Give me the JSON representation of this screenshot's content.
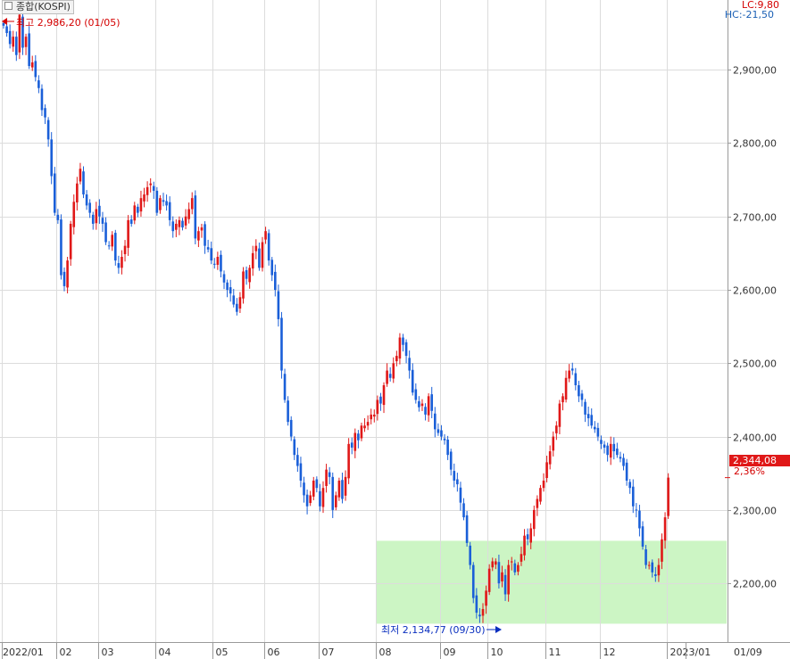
{
  "header": {
    "title": "종합(KOSPI)",
    "lc_label": "LC:9,80",
    "hc_label": "HC:-21,50"
  },
  "annotations": {
    "high": "최고 2,986,20 (01/05)",
    "low": "최저 2,134,77 (09/30)",
    "current_price": "2,344,08",
    "current_change": "2,36%"
  },
  "colors": {
    "up": "#e01818",
    "down": "#1a5fd8",
    "grid": "#dcdcdc",
    "zone": "#ccf5c4"
  },
  "chart_data": {
    "type": "candlestick",
    "title": "종합(KOSPI)",
    "ylim": [
      2120,
      2995
    ],
    "yticks": [
      2200,
      2300,
      2400,
      2500,
      2600,
      2700,
      2800,
      2900
    ],
    "ytick_labels": [
      "2,200,00",
      "2,300,00",
      "2,400,00",
      "2,500,00",
      "2,600,00",
      "2,700,00",
      "2,800,00",
      "2,900,00"
    ],
    "xlabels": [
      "2022/01",
      "02",
      "03",
      "04",
      "05",
      "06",
      "07",
      "08",
      "09",
      "10",
      "11",
      "12",
      "2023/01",
      "01/09"
    ],
    "grid": true,
    "highlight_zone": {
      "from_session": 117,
      "to_session": 226,
      "low": 2145,
      "high": 2258
    },
    "high_point": {
      "session": 0,
      "value": 2986.2,
      "date": "01/05"
    },
    "low_point": {
      "session": 150,
      "value": 2134.77,
      "date": "09/30"
    },
    "last_close": 2344.08,
    "change_pct": 2.36,
    "session_starts": [
      0,
      17,
      30,
      48,
      66,
      82,
      99,
      117,
      137,
      152,
      170,
      187,
      208,
      214
    ],
    "closes": [
      2960,
      2950,
      2935,
      2945,
      2920,
      2975,
      2930,
      2945,
      2905,
      2910,
      2890,
      2875,
      2845,
      2835,
      2805,
      2755,
      2705,
      2695,
      2620,
      2605,
      2640,
      2690,
      2720,
      2745,
      2765,
      2730,
      2715,
      2705,
      2690,
      2710,
      2700,
      2690,
      2665,
      2660,
      2675,
      2640,
      2630,
      2645,
      2660,
      2695,
      2690,
      2715,
      2705,
      2725,
      2730,
      2740,
      2745,
      2735,
      2705,
      2725,
      2720,
      2715,
      2695,
      2680,
      2690,
      2695,
      2685,
      2700,
      2710,
      2725,
      2670,
      2680,
      2685,
      2660,
      2655,
      2640,
      2635,
      2645,
      2625,
      2610,
      2600,
      2595,
      2580,
      2570,
      2590,
      2625,
      2615,
      2630,
      2650,
      2660,
      2630,
      2665,
      2680,
      2640,
      2620,
      2600,
      2560,
      2490,
      2450,
      2420,
      2400,
      2375,
      2360,
      2340,
      2320,
      2305,
      2320,
      2340,
      2330,
      2305,
      2330,
      2355,
      2345,
      2300,
      2320,
      2340,
      2315,
      2345,
      2390,
      2385,
      2405,
      2395,
      2415,
      2415,
      2420,
      2430,
      2430,
      2450,
      2445,
      2470,
      2490,
      2480,
      2500,
      2510,
      2535,
      2525,
      2510,
      2490,
      2460,
      2450,
      2440,
      2445,
      2430,
      2455,
      2435,
      2410,
      2405,
      2400,
      2395,
      2375,
      2355,
      2340,
      2335,
      2310,
      2290,
      2255,
      2225,
      2180,
      2160,
      2155,
      2165,
      2190,
      2220,
      2230,
      2230,
      2200,
      2215,
      2185,
      2225,
      2230,
      2215,
      2225,
      2240,
      2265,
      2260,
      2275,
      2300,
      2315,
      2330,
      2340,
      2365,
      2380,
      2400,
      2415,
      2445,
      2455,
      2480,
      2490,
      2490,
      2470,
      2455,
      2450,
      2430,
      2425,
      2415,
      2410,
      2400,
      2390,
      2385,
      2375,
      2390,
      2380,
      2375,
      2370,
      2360,
      2340,
      2330,
      2305,
      2300,
      2275,
      2250,
      2225,
      2225,
      2215,
      2210,
      2225,
      2260,
      2290,
      2344.08
    ]
  }
}
